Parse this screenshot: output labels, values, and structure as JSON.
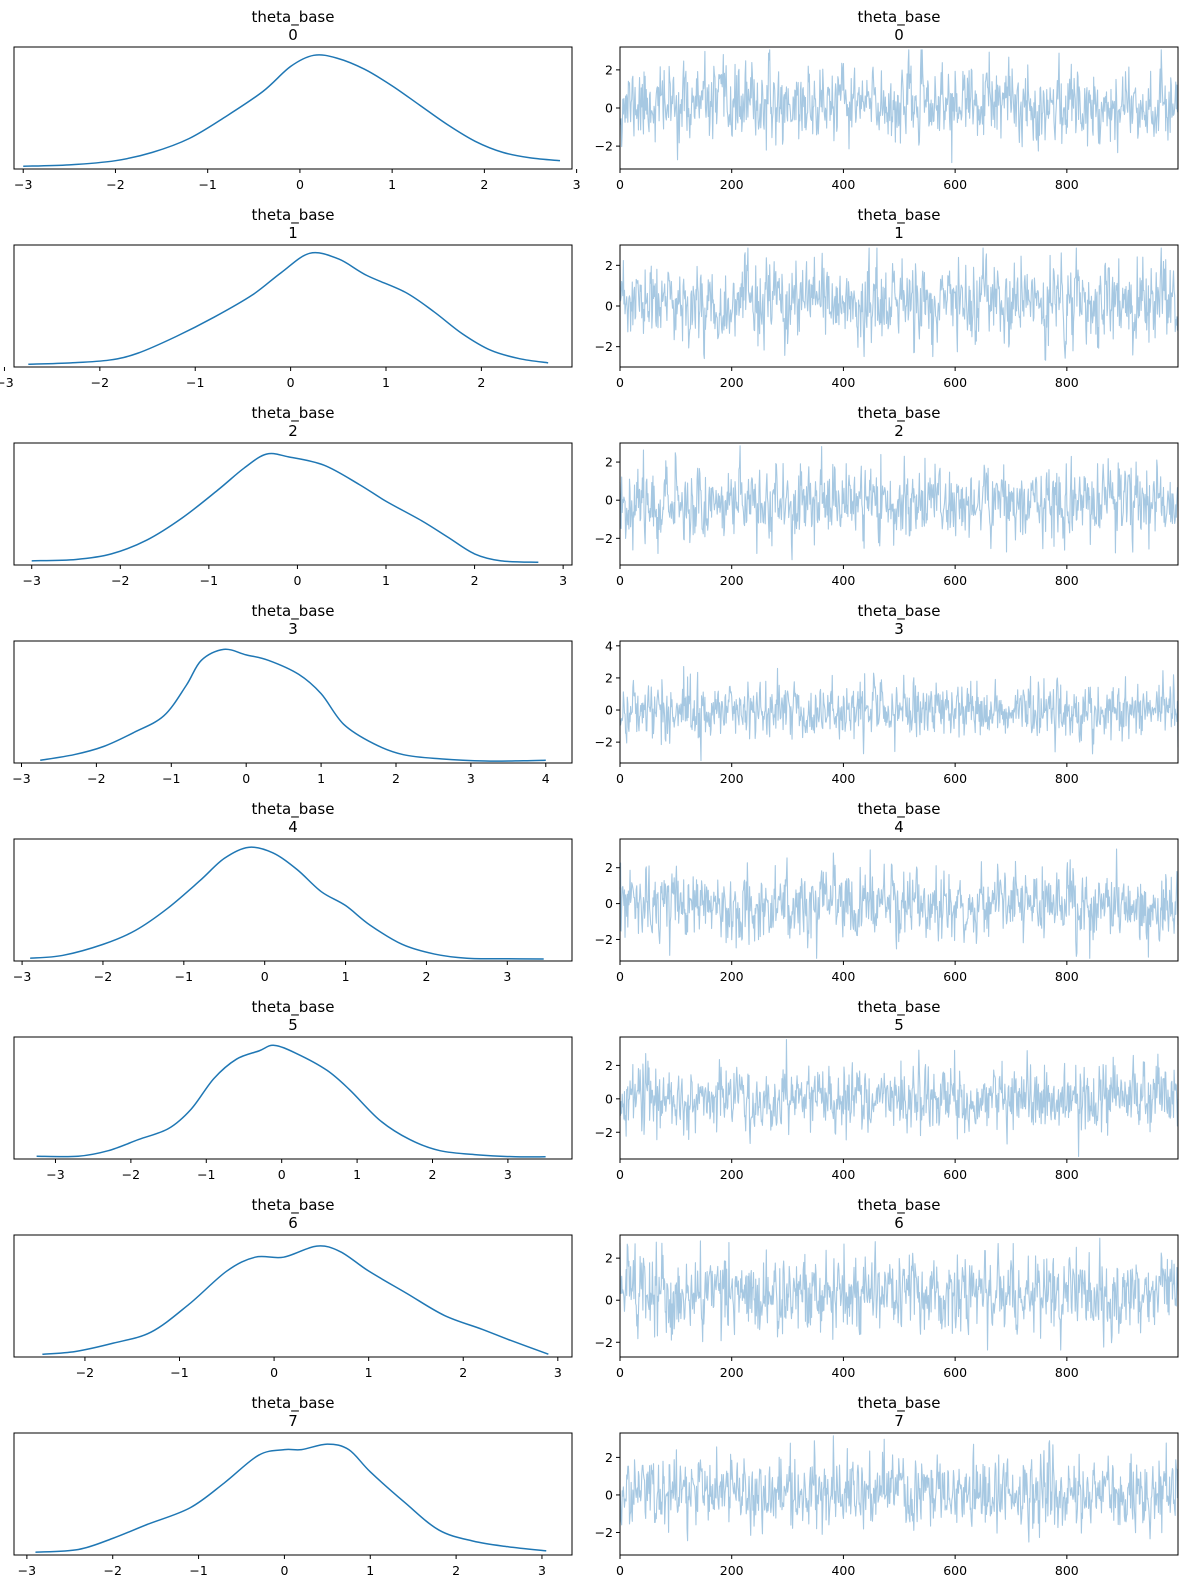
{
  "colors": {
    "kde": "#1f77b4",
    "trace": "#a6c8e2",
    "axes": "#000000",
    "background": "#ffffff"
  },
  "chart_data": [
    {
      "type": "line",
      "variable": "theta_base",
      "index": "0",
      "kde": {
        "xlim": [
          -3.1,
          2.95
        ],
        "xticks": [
          "−3",
          "−2",
          "−1",
          "0",
          "1",
          "2",
          "3"
        ],
        "xtick_values": [
          -3,
          -2,
          -1,
          0,
          1,
          2,
          3
        ],
        "ylim": [
          -0.01,
          0.43
        ],
        "points": [
          [
            -3.0,
            0.0
          ],
          [
            -2.5,
            0.005
          ],
          [
            -2.0,
            0.02
          ],
          [
            -1.6,
            0.05
          ],
          [
            -1.2,
            0.1
          ],
          [
            -0.8,
            0.18
          ],
          [
            -0.4,
            0.27
          ],
          [
            -0.1,
            0.36
          ],
          [
            0.15,
            0.4
          ],
          [
            0.4,
            0.39
          ],
          [
            0.7,
            0.35
          ],
          [
            1.0,
            0.29
          ],
          [
            1.3,
            0.22
          ],
          [
            1.6,
            0.15
          ],
          [
            1.9,
            0.09
          ],
          [
            2.2,
            0.05
          ],
          [
            2.5,
            0.03
          ],
          [
            2.82,
            0.02
          ]
        ]
      },
      "trace": {
        "xlim": [
          0,
          999
        ],
        "xticks": [
          "0",
          "200",
          "400",
          "600",
          "800"
        ],
        "xtick_values": [
          0,
          200,
          400,
          600,
          800
        ],
        "ylim": [
          -3.2,
          3.2
        ],
        "yticks": [
          "−2",
          "0",
          "2"
        ],
        "ytick_values": [
          -2,
          0,
          2
        ],
        "n": 1000,
        "mean": 0.2,
        "sd": 0.95,
        "seed": 11
      }
    },
    {
      "type": "line",
      "variable": "theta_base",
      "index": "1",
      "kde": {
        "xlim": [
          -2.9,
          2.95
        ],
        "xticks": [
          "−3",
          "−2",
          "−1",
          "0",
          "1",
          "2"
        ],
        "xtick_values": [
          -3,
          -2,
          -1,
          0,
          1,
          2
        ],
        "ylim": [
          -0.01,
          0.43
        ],
        "points": [
          [
            -2.75,
            0.0
          ],
          [
            -2.3,
            0.005
          ],
          [
            -1.9,
            0.015
          ],
          [
            -1.6,
            0.04
          ],
          [
            -1.2,
            0.1
          ],
          [
            -0.8,
            0.17
          ],
          [
            -0.4,
            0.25
          ],
          [
            -0.1,
            0.33
          ],
          [
            0.2,
            0.4
          ],
          [
            0.5,
            0.38
          ],
          [
            0.8,
            0.32
          ],
          [
            1.2,
            0.26
          ],
          [
            1.5,
            0.19
          ],
          [
            1.8,
            0.11
          ],
          [
            2.1,
            0.05
          ],
          [
            2.4,
            0.02
          ],
          [
            2.7,
            0.005
          ]
        ]
      },
      "trace": {
        "xlim": [
          0,
          999
        ],
        "xticks": [
          "0",
          "200",
          "400",
          "600",
          "800"
        ],
        "xtick_values": [
          0,
          200,
          400,
          600,
          800
        ],
        "ylim": [
          -3.0,
          3.0
        ],
        "yticks": [
          "−2",
          "0",
          "2"
        ],
        "ytick_values": [
          -2,
          0,
          2
        ],
        "n": 1000,
        "mean": 0.1,
        "sd": 0.95,
        "seed": 23
      }
    },
    {
      "type": "line",
      "variable": "theta_base",
      "index": "2",
      "kde": {
        "xlim": [
          -3.2,
          3.1
        ],
        "xticks": [
          "−3",
          "−2",
          "−1",
          "0",
          "1",
          "2",
          "3"
        ],
        "xtick_values": [
          -3,
          -2,
          -1,
          0,
          1,
          2,
          3
        ],
        "ylim": [
          -0.01,
          0.43
        ],
        "points": [
          [
            -3.0,
            0.005
          ],
          [
            -2.5,
            0.01
          ],
          [
            -2.1,
            0.03
          ],
          [
            -1.7,
            0.08
          ],
          [
            -1.3,
            0.16
          ],
          [
            -0.9,
            0.26
          ],
          [
            -0.6,
            0.34
          ],
          [
            -0.35,
            0.39
          ],
          [
            -0.1,
            0.38
          ],
          [
            0.3,
            0.35
          ],
          [
            0.7,
            0.28
          ],
          [
            1.0,
            0.22
          ],
          [
            1.4,
            0.15
          ],
          [
            1.7,
            0.09
          ],
          [
            2.0,
            0.03
          ],
          [
            2.3,
            0.005
          ],
          [
            2.72,
            0.0
          ]
        ]
      },
      "trace": {
        "xlim": [
          0,
          999
        ],
        "xticks": [
          "0",
          "200",
          "400",
          "600",
          "800"
        ],
        "xtick_values": [
          0,
          200,
          400,
          600,
          800
        ],
        "ylim": [
          -3.4,
          3.0
        ],
        "yticks": [
          "−2",
          "0",
          "2"
        ],
        "ytick_values": [
          -2,
          0,
          2
        ],
        "n": 1000,
        "mean": -0.1,
        "sd": 0.95,
        "seed": 37
      }
    },
    {
      "type": "line",
      "variable": "theta_base",
      "index": "3",
      "kde": {
        "xlim": [
          -3.1,
          4.35
        ],
        "xticks": [
          "−3",
          "−2",
          "−1",
          "0",
          "1",
          "2",
          "3",
          "4"
        ],
        "xtick_values": [
          -3,
          -2,
          -1,
          0,
          1,
          2,
          3,
          4
        ],
        "ylim": [
          -0.01,
          0.43
        ],
        "points": [
          [
            -2.75,
            0.0
          ],
          [
            -2.3,
            0.02
          ],
          [
            -1.9,
            0.05
          ],
          [
            -1.5,
            0.1
          ],
          [
            -1.1,
            0.16
          ],
          [
            -0.8,
            0.27
          ],
          [
            -0.6,
            0.36
          ],
          [
            -0.3,
            0.4
          ],
          [
            0.0,
            0.38
          ],
          [
            0.3,
            0.36
          ],
          [
            0.7,
            0.31
          ],
          [
            1.0,
            0.24
          ],
          [
            1.3,
            0.13
          ],
          [
            1.7,
            0.06
          ],
          [
            2.1,
            0.02
          ],
          [
            2.6,
            0.005
          ],
          [
            3.2,
            -0.003
          ],
          [
            3.7,
            -0.002
          ],
          [
            4.0,
            0.0
          ]
        ]
      },
      "trace": {
        "xlim": [
          0,
          999
        ],
        "xticks": [
          "0",
          "200",
          "400",
          "600",
          "800"
        ],
        "xtick_values": [
          0,
          200,
          400,
          600,
          800
        ],
        "ylim": [
          -3.3,
          4.3
        ],
        "yticks": [
          "−2",
          "0",
          "2",
          "4"
        ],
        "ytick_values": [
          -2,
          0,
          2,
          4
        ],
        "n": 1000,
        "mean": 0.0,
        "sd": 0.9,
        "seed": 41
      }
    },
    {
      "type": "line",
      "variable": "theta_base",
      "index": "4",
      "kde": {
        "xlim": [
          -3.1,
          3.8
        ],
        "xticks": [
          "−3",
          "−2",
          "−1",
          "0",
          "1",
          "2",
          "3"
        ],
        "xtick_values": [
          -3,
          -2,
          -1,
          0,
          1,
          2,
          3
        ],
        "ylim": [
          -0.01,
          0.43
        ],
        "points": [
          [
            -2.9,
            0.0
          ],
          [
            -2.5,
            0.01
          ],
          [
            -2.0,
            0.05
          ],
          [
            -1.6,
            0.1
          ],
          [
            -1.2,
            0.18
          ],
          [
            -0.8,
            0.28
          ],
          [
            -0.5,
            0.36
          ],
          [
            -0.2,
            0.4
          ],
          [
            0.1,
            0.38
          ],
          [
            0.4,
            0.32
          ],
          [
            0.7,
            0.24
          ],
          [
            1.0,
            0.19
          ],
          [
            1.3,
            0.12
          ],
          [
            1.7,
            0.05
          ],
          [
            2.1,
            0.015
          ],
          [
            2.5,
            0.0
          ],
          [
            3.0,
            -0.002
          ],
          [
            3.45,
            -0.003
          ]
        ]
      },
      "trace": {
        "xlim": [
          0,
          999
        ],
        "xticks": [
          "0",
          "200",
          "400",
          "600",
          "800"
        ],
        "xtick_values": [
          0,
          200,
          400,
          600,
          800
        ],
        "ylim": [
          -3.2,
          3.6
        ],
        "yticks": [
          "−2",
          "0",
          "2"
        ],
        "ytick_values": [
          -2,
          0,
          2
        ],
        "n": 1000,
        "mean": -0.1,
        "sd": 0.95,
        "seed": 53
      }
    },
    {
      "type": "line",
      "variable": "theta_base",
      "index": "5",
      "kde": {
        "xlim": [
          -3.55,
          3.85
        ],
        "xticks": [
          "−3",
          "−2",
          "−1",
          "0",
          "1",
          "2",
          "3"
        ],
        "xtick_values": [
          -3,
          -2,
          -1,
          0,
          1,
          2,
          3
        ],
        "ylim": [
          -0.01,
          0.43
        ],
        "points": [
          [
            -3.25,
            0.0
          ],
          [
            -2.7,
            0.0
          ],
          [
            -2.3,
            0.02
          ],
          [
            -1.9,
            0.06
          ],
          [
            -1.5,
            0.1
          ],
          [
            -1.2,
            0.17
          ],
          [
            -0.9,
            0.28
          ],
          [
            -0.6,
            0.35
          ],
          [
            -0.3,
            0.38
          ],
          [
            -0.1,
            0.4
          ],
          [
            0.2,
            0.37
          ],
          [
            0.6,
            0.31
          ],
          [
            0.9,
            0.24
          ],
          [
            1.3,
            0.13
          ],
          [
            1.7,
            0.06
          ],
          [
            2.1,
            0.02
          ],
          [
            2.6,
            0.005
          ],
          [
            3.1,
            -0.002
          ],
          [
            3.5,
            -0.002
          ]
        ]
      },
      "trace": {
        "xlim": [
          0,
          999
        ],
        "xticks": [
          "0",
          "200",
          "400",
          "600",
          "800"
        ],
        "xtick_values": [
          0,
          200,
          400,
          600,
          800
        ],
        "ylim": [
          -3.6,
          3.7
        ],
        "yticks": [
          "−2",
          "0",
          "2"
        ],
        "ytick_values": [
          -2,
          0,
          2
        ],
        "n": 1000,
        "mean": 0.0,
        "sd": 0.95,
        "seed": 67
      }
    },
    {
      "type": "line",
      "variable": "theta_base",
      "index": "6",
      "kde": {
        "xlim": [
          -2.75,
          3.15
        ],
        "xticks": [
          "−2",
          "−1",
          "0",
          "1",
          "2",
          "3"
        ],
        "xtick_values": [
          -2,
          -1,
          0,
          1,
          2,
          3
        ],
        "ylim": [
          -0.01,
          0.43
        ],
        "points": [
          [
            -2.45,
            0.0
          ],
          [
            -2.1,
            0.01
          ],
          [
            -1.7,
            0.04
          ],
          [
            -1.3,
            0.08
          ],
          [
            -0.9,
            0.18
          ],
          [
            -0.5,
            0.3
          ],
          [
            -0.2,
            0.35
          ],
          [
            0.1,
            0.35
          ],
          [
            0.45,
            0.39
          ],
          [
            0.7,
            0.37
          ],
          [
            1.0,
            0.3
          ],
          [
            1.4,
            0.22
          ],
          [
            1.8,
            0.14
          ],
          [
            2.2,
            0.09
          ],
          [
            2.5,
            0.05
          ],
          [
            2.9,
            0.0
          ]
        ]
      },
      "trace": {
        "xlim": [
          0,
          999
        ],
        "xticks": [
          "0",
          "200",
          "400",
          "600",
          "800"
        ],
        "xtick_values": [
          0,
          200,
          400,
          600,
          800
        ],
        "ylim": [
          -2.7,
          3.1
        ],
        "yticks": [
          "−2",
          "0",
          "2"
        ],
        "ytick_values": [
          -2,
          0,
          2
        ],
        "n": 1000,
        "mean": 0.3,
        "sd": 0.95,
        "seed": 79
      }
    },
    {
      "type": "line",
      "variable": "theta_base",
      "index": "7",
      "kde": {
        "xlim": [
          -3.15,
          3.35
        ],
        "xticks": [
          "−3",
          "−2",
          "−1",
          "0",
          "1",
          "2",
          "3"
        ],
        "xtick_values": [
          -3,
          -2,
          -1,
          0,
          1,
          2,
          3
        ],
        "ylim": [
          -0.01,
          0.43
        ],
        "points": [
          [
            -2.9,
            0.0
          ],
          [
            -2.4,
            0.01
          ],
          [
            -2.0,
            0.05
          ],
          [
            -1.6,
            0.1
          ],
          [
            -1.1,
            0.16
          ],
          [
            -0.7,
            0.25
          ],
          [
            -0.3,
            0.35
          ],
          [
            0.0,
            0.37
          ],
          [
            0.2,
            0.37
          ],
          [
            0.5,
            0.39
          ],
          [
            0.75,
            0.37
          ],
          [
            1.0,
            0.29
          ],
          [
            1.4,
            0.18
          ],
          [
            1.8,
            0.08
          ],
          [
            2.2,
            0.04
          ],
          [
            2.6,
            0.02
          ],
          [
            3.05,
            0.005
          ]
        ]
      },
      "trace": {
        "xlim": [
          0,
          999
        ],
        "xticks": [
          "0",
          "200",
          "400",
          "600",
          "800"
        ],
        "xtick_values": [
          0,
          200,
          400,
          600,
          800
        ],
        "ylim": [
          -3.2,
          3.3
        ],
        "yticks": [
          "−2",
          "0",
          "2"
        ],
        "ytick_values": [
          -2,
          0,
          2
        ],
        "n": 1000,
        "mean": 0.1,
        "sd": 0.95,
        "seed": 97
      }
    }
  ]
}
